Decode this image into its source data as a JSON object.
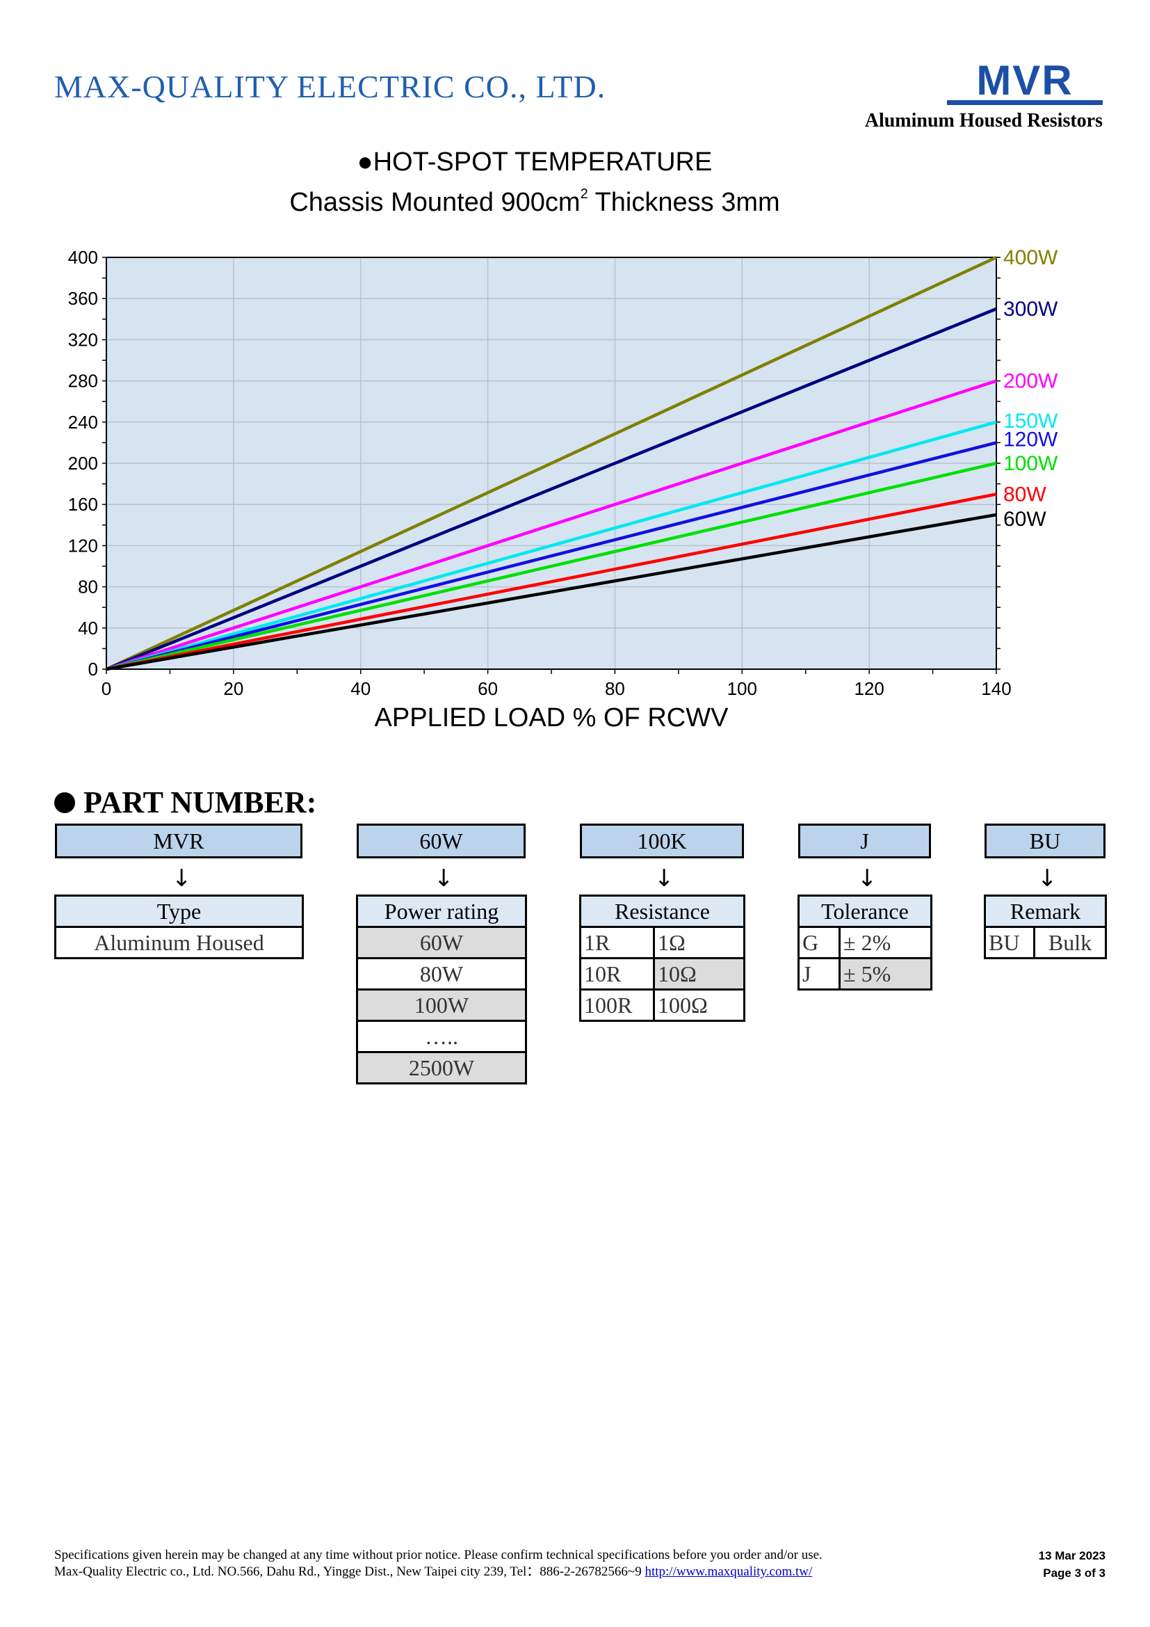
{
  "header": {
    "company": "MAX-QUALITY ELECTRIC CO., LTD.",
    "logo_text": "MVR",
    "tagline": "Aluminum Housed Resistors"
  },
  "chart": {
    "title_line1": "●HOT-SPOT TEMPERATURE",
    "title_line2_main": "Chassis Mounted 900cm",
    "title_line2_sup": "2",
    "title_line2_end": " Thickness 3mm"
  },
  "chart_data": {
    "type": "line",
    "title": "HOT-SPOT TEMPERATURE",
    "subtitle": "Chassis Mounted 900cm2 Thickness 3mm",
    "xlabel": "APPLIED LOAD % OF RCWV",
    "ylabel": "",
    "xlim": [
      0,
      140
    ],
    "ylim": [
      0,
      400
    ],
    "xticks": [
      0,
      20,
      40,
      60,
      80,
      100,
      120,
      140
    ],
    "yticks": [
      0,
      40,
      80,
      120,
      160,
      200,
      240,
      280,
      320,
      360,
      400
    ],
    "grid": true,
    "background": "#d6e4f1",
    "legend": "right end labels",
    "series": [
      {
        "name": "400W",
        "color": "#808000",
        "x": [
          0,
          140
        ],
        "y": [
          0,
          400
        ]
      },
      {
        "name": "300W",
        "color": "#000080",
        "x": [
          0,
          140
        ],
        "y": [
          0,
          350
        ]
      },
      {
        "name": "200W",
        "color": "#ff00ff",
        "x": [
          0,
          140
        ],
        "y": [
          0,
          280
        ]
      },
      {
        "name": "150W",
        "color": "#00e8f0",
        "x": [
          0,
          140
        ],
        "y": [
          0,
          240
        ]
      },
      {
        "name": "120W",
        "color": "#1010e0",
        "x": [
          0,
          140
        ],
        "y": [
          0,
          220
        ]
      },
      {
        "name": "100W",
        "color": "#00e000",
        "x": [
          0,
          140
        ],
        "y": [
          0,
          200
        ]
      },
      {
        "name": "80W",
        "color": "#ff0000",
        "x": [
          0,
          140
        ],
        "y": [
          0,
          170
        ]
      },
      {
        "name": "60W",
        "color": "#000000",
        "x": [
          0,
          140
        ],
        "y": [
          0,
          150
        ]
      }
    ]
  },
  "part_number": {
    "heading": "PART NUMBER:",
    "codes": [
      "MVR",
      "60W",
      "100K",
      "J",
      "BU"
    ],
    "arrow": "↓",
    "type": {
      "header": "Type",
      "value": "Aluminum Housed"
    },
    "power": {
      "header": "Power rating",
      "values": [
        "60W",
        "80W",
        "100W",
        "…..",
        "2500W"
      ]
    },
    "resistance": {
      "header": "Resistance",
      "rows": [
        [
          "1R",
          "1Ω"
        ],
        [
          "10R",
          "10Ω"
        ],
        [
          "100R",
          "100Ω"
        ]
      ]
    },
    "tolerance": {
      "header": "Tolerance",
      "rows": [
        [
          "G",
          "± 2%"
        ],
        [
          "J",
          "± 5%"
        ]
      ]
    },
    "remark": {
      "header": "Remark",
      "rows": [
        [
          "BU",
          "Bulk"
        ]
      ]
    }
  },
  "footer": {
    "line1": "Specifications given herein may be changed at any time without prior notice. Please confirm technical specifications before you order and/or use.",
    "line2": "Max-Quality Electric co., Ltd. NO.566, Dahu Rd., Yingge Dist., New Taipei city 239, Tel：886-2-26782566~9 ",
    "link": "http://www.maxquality.com.tw/",
    "date": "13 Mar 2023",
    "page": "Page 3 of 3"
  },
  "colors": {
    "company": "#1f5fb0",
    "logo": "#1c4fa8",
    "code_box": "#bcd3ec",
    "table_header": "#dce9f5",
    "table_gray": "#dcdcdc"
  }
}
